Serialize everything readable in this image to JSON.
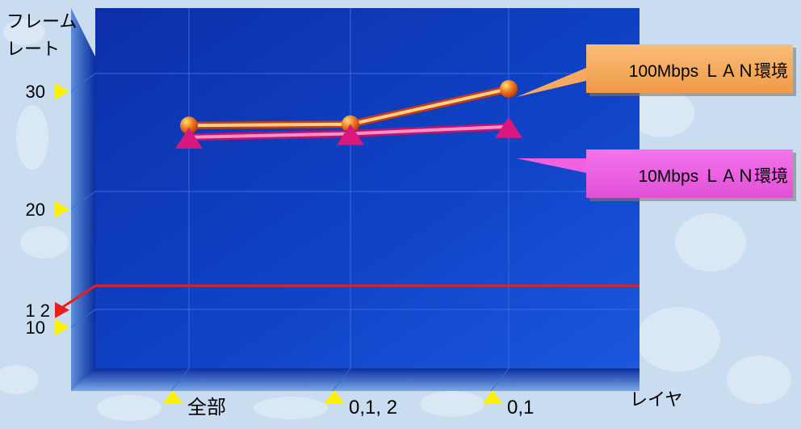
{
  "chart_data": {
    "type": "line",
    "ylabel": "フレーム\nレート",
    "xlabel": "レイヤ",
    "categories": [
      "全部",
      "0,1, 2",
      "0,1"
    ],
    "y_ticks": [
      {
        "value": 30,
        "label": "30"
      },
      {
        "value": 20,
        "label": "20"
      },
      {
        "value": 10,
        "label": "10"
      }
    ],
    "threshold": {
      "value": 12,
      "label": "1 2",
      "color": "#e8201c"
    },
    "ylim": [
      5,
      35
    ],
    "series": [
      {
        "name": "100Mbps ＬＡＮ環境",
        "values": [
          25.6,
          25.7,
          28.7
        ],
        "marker": "circle",
        "line_color": "#ffd08a",
        "marker_color": "#e85a10",
        "callout_color": "#f7aa5f"
      },
      {
        "name": "10Mbps ＬＡＮ環境",
        "values": [
          24.6,
          24.9,
          25.5
        ],
        "marker": "triangle",
        "line_color": "#f890c8",
        "marker_color": "#d8187e",
        "callout_color": "#f060e0"
      }
    ],
    "grid": true,
    "legend": "callouts-right"
  }
}
